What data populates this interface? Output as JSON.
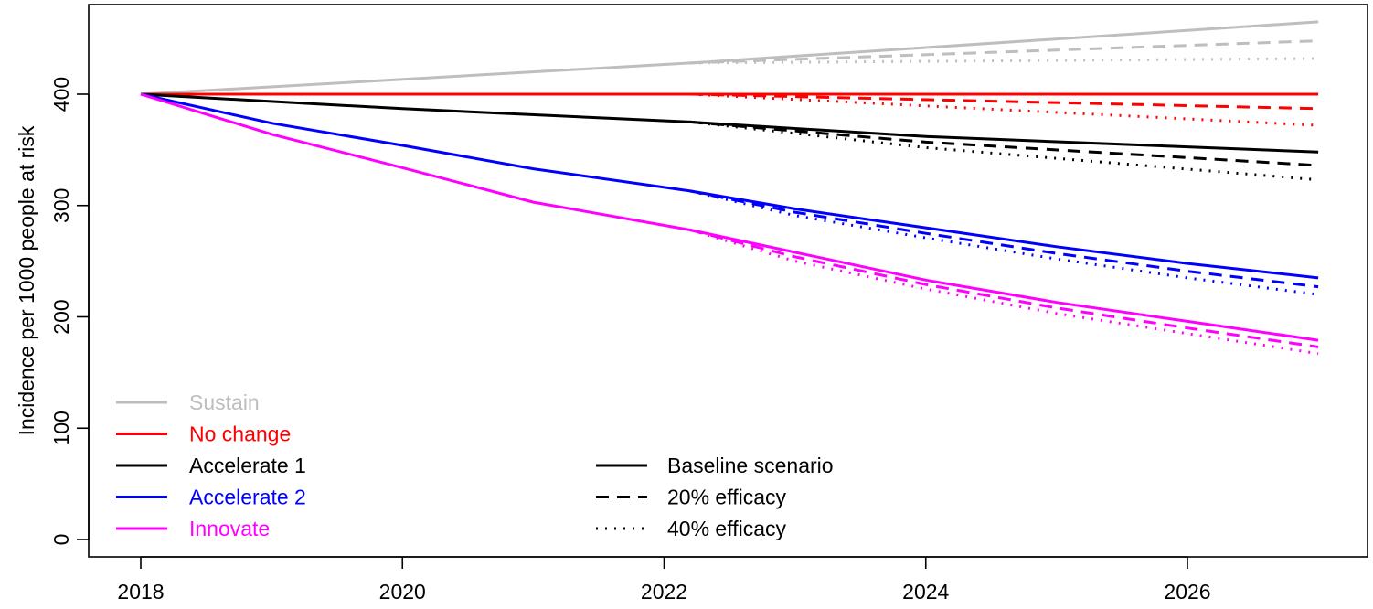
{
  "chart_data": {
    "type": "line",
    "title": "",
    "xlabel": "",
    "ylabel": "Incidence per 1000 people at risk",
    "xlim": [
      2017.6,
      2027.4
    ],
    "ylim": [
      -10,
      480
    ],
    "x_ticks": [
      2018,
      2020,
      2022,
      2024,
      2026
    ],
    "x_tick_labels": [
      "2018",
      "2020",
      "2022",
      "2024",
      "2026"
    ],
    "y_ticks": [
      0,
      100,
      200,
      300,
      400
    ],
    "y_tick_labels": [
      "0",
      "100",
      "200",
      "300",
      "400"
    ],
    "grid": false,
    "legend_scenarios_position": "bottom-left",
    "legend_linetypes_position": "bottom-center",
    "scenarios": [
      {
        "name": "Sustain",
        "color": "#bebebe",
        "baseline": [
          [
            2018,
            400
          ],
          [
            2022.2,
            428
          ],
          [
            2027,
            465
          ]
        ],
        "eff20": [
          [
            2022.2,
            428
          ],
          [
            2027,
            448
          ]
        ],
        "eff40": [
          [
            2022.2,
            428
          ],
          [
            2027,
            432
          ]
        ]
      },
      {
        "name": "No change",
        "color": "#ff0000",
        "baseline": [
          [
            2018,
            400
          ],
          [
            2027,
            400
          ]
        ],
        "eff20": [
          [
            2022.2,
            400
          ],
          [
            2027,
            387
          ]
        ],
        "eff40": [
          [
            2022.2,
            400
          ],
          [
            2027,
            372
          ]
        ]
      },
      {
        "name": "Accelerate 1",
        "color": "#000000",
        "baseline": [
          [
            2018,
            400
          ],
          [
            2020,
            387
          ],
          [
            2022.2,
            375
          ],
          [
            2024,
            362
          ],
          [
            2027,
            348
          ]
        ],
        "eff20": [
          [
            2022.2,
            375
          ],
          [
            2024,
            357
          ],
          [
            2027,
            336
          ]
        ],
        "eff40": [
          [
            2022.2,
            375
          ],
          [
            2024,
            352
          ],
          [
            2027,
            323
          ]
        ]
      },
      {
        "name": "Accelerate 2",
        "color": "#0000ff",
        "baseline": [
          [
            2018,
            400
          ],
          [
            2019,
            374
          ],
          [
            2020,
            354
          ],
          [
            2021,
            333
          ],
          [
            2022.2,
            313
          ],
          [
            2023,
            297
          ],
          [
            2024,
            280
          ],
          [
            2025,
            263
          ],
          [
            2026,
            248
          ],
          [
            2027,
            235
          ]
        ],
        "eff20": [
          [
            2022.2,
            313
          ],
          [
            2023,
            294
          ],
          [
            2024,
            275
          ],
          [
            2025,
            257
          ],
          [
            2026,
            241
          ],
          [
            2027,
            227
          ]
        ],
        "eff40": [
          [
            2022.2,
            313
          ],
          [
            2023,
            291
          ],
          [
            2024,
            271
          ],
          [
            2025,
            252
          ],
          [
            2026,
            235
          ],
          [
            2027,
            220
          ]
        ]
      },
      {
        "name": "Innovate",
        "color": "#ff00ff",
        "baseline": [
          [
            2018,
            400
          ],
          [
            2019,
            364
          ],
          [
            2020,
            334
          ],
          [
            2021,
            303
          ],
          [
            2022.2,
            278
          ],
          [
            2023,
            258
          ],
          [
            2024,
            233
          ],
          [
            2025,
            213
          ],
          [
            2026,
            196
          ],
          [
            2027,
            179
          ]
        ],
        "eff20": [
          [
            2022.2,
            278
          ],
          [
            2023,
            254
          ],
          [
            2024,
            229
          ],
          [
            2025,
            208
          ],
          [
            2026,
            190
          ],
          [
            2027,
            173
          ]
        ],
        "eff40": [
          [
            2022.2,
            278
          ],
          [
            2023,
            250
          ],
          [
            2024,
            225
          ],
          [
            2025,
            203
          ],
          [
            2026,
            185
          ],
          [
            2027,
            167
          ]
        ]
      }
    ],
    "linetypes": [
      {
        "name": "Baseline scenario",
        "dash": "solid"
      },
      {
        "name": "20% efficacy",
        "dash": "dashed"
      },
      {
        "name": "40% efficacy",
        "dash": "dotted"
      }
    ]
  }
}
